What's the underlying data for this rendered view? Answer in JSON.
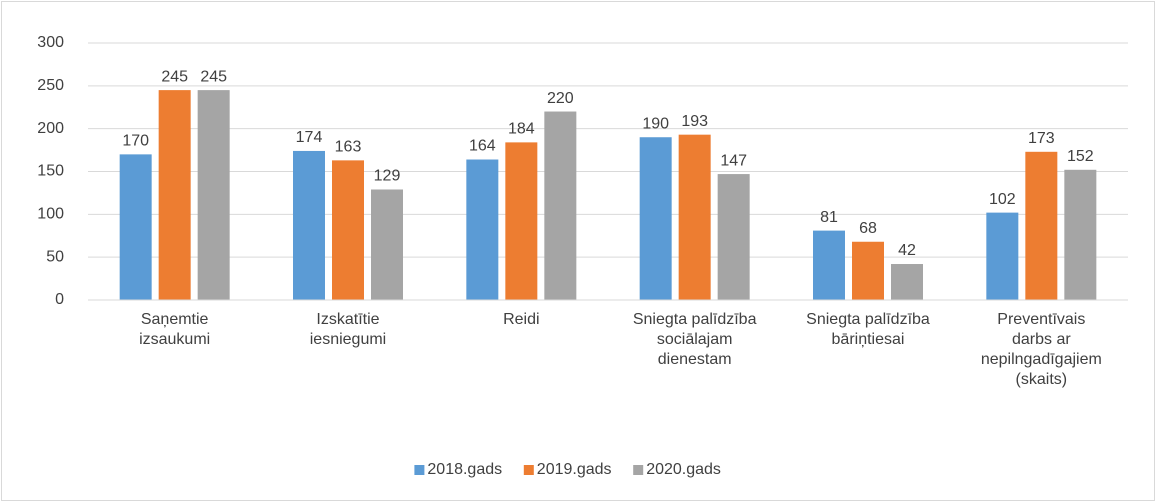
{
  "chart_data": {
    "type": "bar",
    "categories": [
      "Saņemtie izsaukumi",
      "Izskatītie iesniegumi",
      "Reidi",
      "Sniegta palīdzība sociālajam dienestam",
      "Sniegta palīdzība bāriņtiesai",
      "Preventīvais darbs ar nepilngadīgajiem (skaits)"
    ],
    "series": [
      {
        "name": "2018.gads",
        "color": "#5b9bd5",
        "values": [
          170,
          174,
          164,
          190,
          81,
          102
        ]
      },
      {
        "name": "2019.gads",
        "color": "#ed7d31",
        "values": [
          245,
          163,
          184,
          193,
          68,
          173
        ]
      },
      {
        "name": "2020.gads",
        "color": "#a5a5a5",
        "values": [
          245,
          129,
          220,
          147,
          42,
          152
        ]
      }
    ],
    "ylim": [
      0,
      300
    ],
    "yticks": [
      0,
      50,
      100,
      150,
      200,
      250,
      300
    ],
    "grid": true,
    "legend": "bottom"
  }
}
